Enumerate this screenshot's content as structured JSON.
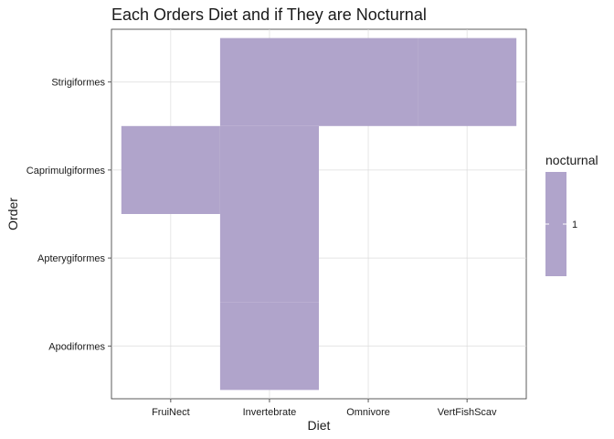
{
  "chart_data": {
    "type": "heatmap",
    "title": "Each Orders Diet and if They are Nocturnal",
    "xlabel": "Diet",
    "ylabel": "Order",
    "x_categories": [
      "FruiNect",
      "Invertebrate",
      "Omnivore",
      "VertFishScav"
    ],
    "y_categories": [
      "Apodiformes",
      "Apterygiformes",
      "Caprimulgiformes",
      "Strigiformes"
    ],
    "tiles": [
      {
        "x": "FruiNect",
        "y": "Caprimulgiformes",
        "value": 1
      },
      {
        "x": "Invertebrate",
        "y": "Apodiformes",
        "value": 1
      },
      {
        "x": "Invertebrate",
        "y": "Apterygiformes",
        "value": 1
      },
      {
        "x": "Invertebrate",
        "y": "Caprimulgiformes",
        "value": 1
      },
      {
        "x": "Invertebrate",
        "y": "Strigiformes",
        "value": 1
      },
      {
        "x": "Omnivore",
        "y": "Strigiformes",
        "value": 1
      },
      {
        "x": "VertFishScav",
        "y": "Strigiformes",
        "value": 1
      }
    ],
    "fill_color": "#b0a4cb",
    "grid": true,
    "legend": {
      "title": "nocturnal",
      "labels": [
        "1"
      ],
      "placement": "right"
    }
  }
}
